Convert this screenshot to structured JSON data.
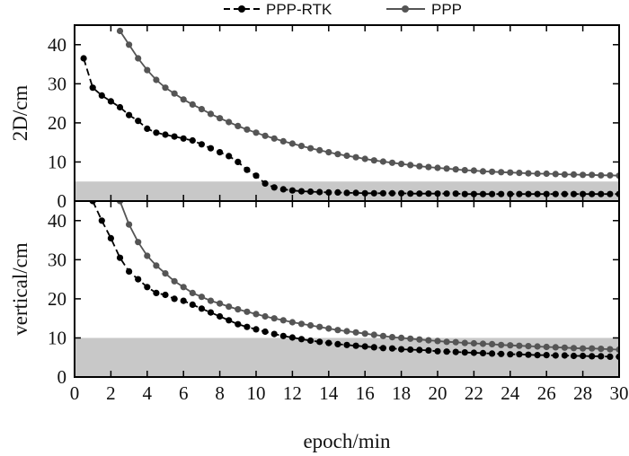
{
  "chart_data": {
    "type": "line",
    "xlabel": "epoch/min",
    "xlim": [
      0,
      30
    ],
    "xticks": [
      0,
      2,
      4,
      6,
      8,
      10,
      12,
      14,
      16,
      18,
      20,
      22,
      24,
      26,
      28,
      30
    ],
    "legend": {
      "placement": "top-center",
      "entries": [
        {
          "name": "PPP-RTK",
          "style": "dashed",
          "marker": "circle",
          "color": "#000000"
        },
        {
          "name": "PPP",
          "style": "solid",
          "marker": "circle",
          "color": "#555555"
        }
      ]
    },
    "panels": [
      {
        "ylabel": "2D/cm",
        "ylim": [
          0,
          45
        ],
        "yticks": [
          0,
          10,
          20,
          30,
          40
        ],
        "threshold_band": [
          0,
          5
        ],
        "series": [
          {
            "name": "PPP-RTK",
            "x": [
              0.5,
              1,
              1.5,
              2,
              2.5,
              3,
              3.5,
              4,
              4.5,
              5,
              5.5,
              6,
              6.5,
              7,
              7.5,
              8,
              8.5,
              9,
              9.5,
              10,
              10.5,
              11,
              11.5,
              12,
              12.5,
              13,
              13.5,
              14,
              14.5,
              15,
              15.5,
              16,
              16.5,
              17,
              17.5,
              18,
              18.5,
              19,
              19.5,
              20,
              20.5,
              21,
              21.5,
              22,
              22.5,
              23,
              23.5,
              24,
              24.5,
              25,
              25.5,
              26,
              26.5,
              27,
              27.5,
              28,
              28.5,
              29,
              29.5,
              30
            ],
            "y": [
              36.5,
              29,
              27,
              25.5,
              24,
              22,
              20.5,
              18.5,
              17.5,
              17,
              16.5,
              16,
              15.5,
              14.5,
              13.5,
              12.5,
              11.5,
              10,
              8,
              6.5,
              4.5,
              3.5,
              3,
              2.7,
              2.5,
              2.4,
              2.3,
              2.2,
              2.2,
              2.1,
              2.1,
              2,
              2,
              2,
              2,
              2,
              1.9,
              1.9,
              1.9,
              1.9,
              1.9,
              1.9,
              1.8,
              1.8,
              1.8,
              1.8,
              1.8,
              1.8,
              1.8,
              1.8,
              1.8,
              1.8,
              1.8,
              1.8,
              1.8,
              1.8,
              1.8,
              1.8,
              1.8,
              1.8
            ]
          },
          {
            "name": "PPP",
            "x": [
              2.5,
              3,
              3.5,
              4,
              4.5,
              5,
              5.5,
              6,
              6.5,
              7,
              7.5,
              8,
              8.5,
              9,
              9.5,
              10,
              10.5,
              11,
              11.5,
              12,
              12.5,
              13,
              13.5,
              14,
              14.5,
              15,
              15.5,
              16,
              16.5,
              17,
              17.5,
              18,
              18.5,
              19,
              19.5,
              20,
              20.5,
              21,
              21.5,
              22,
              22.5,
              23,
              23.5,
              24,
              24.5,
              25,
              25.5,
              26,
              26.5,
              27,
              27.5,
              28,
              28.5,
              29,
              29.5,
              30
            ],
            "y": [
              43.5,
              40,
              36.5,
              33.5,
              31,
              29,
              27.5,
              26,
              24.7,
              23.5,
              22.3,
              21.2,
              20.2,
              19.2,
              18.3,
              17.5,
              16.7,
              16,
              15.3,
              14.7,
              14.1,
              13.5,
              13,
              12.5,
              12,
              11.6,
              11.2,
              10.8,
              10.4,
              10.1,
              9.8,
              9.5,
              9.2,
              8.9,
              8.7,
              8.5,
              8.3,
              8.1,
              7.9,
              7.8,
              7.6,
              7.5,
              7.4,
              7.3,
              7.2,
              7.1,
              7,
              7,
              6.9,
              6.8,
              6.8,
              6.7,
              6.7,
              6.6,
              6.6,
              6.5
            ]
          }
        ]
      },
      {
        "ylabel": "vertical/cm",
        "ylim": [
          0,
          45
        ],
        "yticks": [
          0,
          10,
          20,
          30,
          40
        ],
        "threshold_band": [
          0,
          10
        ],
        "series": [
          {
            "name": "PPP-RTK",
            "x": [
              1,
              1.5,
              2,
              2.5,
              3,
              3.5,
              4,
              4.5,
              5,
              5.5,
              6,
              6.5,
              7,
              7.5,
              8,
              8.5,
              9,
              9.5,
              10,
              10.5,
              11,
              11.5,
              12,
              12.5,
              13,
              13.5,
              14,
              14.5,
              15,
              15.5,
              16,
              16.5,
              17,
              17.5,
              18,
              18.5,
              19,
              19.5,
              20,
              20.5,
              21,
              21.5,
              22,
              22.5,
              23,
              23.5,
              24,
              24.5,
              25,
              25.5,
              26,
              26.5,
              27,
              27.5,
              28,
              28.5,
              29,
              29.5,
              30
            ],
            "y": [
              45,
              40,
              35.5,
              30.5,
              27,
              25,
              23,
              21.5,
              21,
              20,
              19.5,
              18.5,
              17.5,
              16.5,
              15.5,
              14.5,
              13.5,
              12.8,
              12.2,
              11.6,
              11,
              10.5,
              10.1,
              9.7,
              9.3,
              9,
              8.7,
              8.4,
              8.2,
              8,
              7.8,
              7.6,
              7.4,
              7.3,
              7.1,
              7,
              6.9,
              6.8,
              6.6,
              6.5,
              6.4,
              6.3,
              6.2,
              6.1,
              6,
              5.9,
              5.8,
              5.8,
              5.7,
              5.6,
              5.6,
              5.5,
              5.5,
              5.4,
              5.4,
              5.3,
              5.3,
              5.2,
              5.2
            ]
          },
          {
            "name": "PPP",
            "x": [
              2.5,
              3,
              3.5,
              4,
              4.5,
              5,
              5.5,
              6,
              6.5,
              7,
              7.5,
              8,
              8.5,
              9,
              9.5,
              10,
              10.5,
              11,
              11.5,
              12,
              12.5,
              13,
              13.5,
              14,
              14.5,
              15,
              15.5,
              16,
              16.5,
              17,
              17.5,
              18,
              18.5,
              19,
              19.5,
              20,
              20.5,
              21,
              21.5,
              22,
              22.5,
              23,
              23.5,
              24,
              24.5,
              25,
              25.5,
              26,
              26.5,
              27,
              27.5,
              28,
              28.5,
              29,
              29.5,
              30
            ],
            "y": [
              45,
              39,
              34.5,
              31,
              28.5,
              26.5,
              24.5,
              23,
              21.5,
              20.5,
              19.5,
              18.8,
              18,
              17.3,
              16.7,
              16.1,
              15.5,
              15,
              14.5,
              14,
              13.6,
              13.2,
              12.8,
              12.4,
              12,
              11.7,
              11.4,
              11.1,
              10.8,
              10.5,
              10.2,
              10,
              9.8,
              9.6,
              9.4,
              9.2,
              9,
              8.9,
              8.7,
              8.6,
              8.5,
              8.4,
              8.2,
              8.1,
              8,
              7.9,
              7.8,
              7.7,
              7.6,
              7.5,
              7.4,
              7.3,
              7.3,
              7.2,
              7.1,
              7
            ]
          }
        ]
      }
    ]
  }
}
